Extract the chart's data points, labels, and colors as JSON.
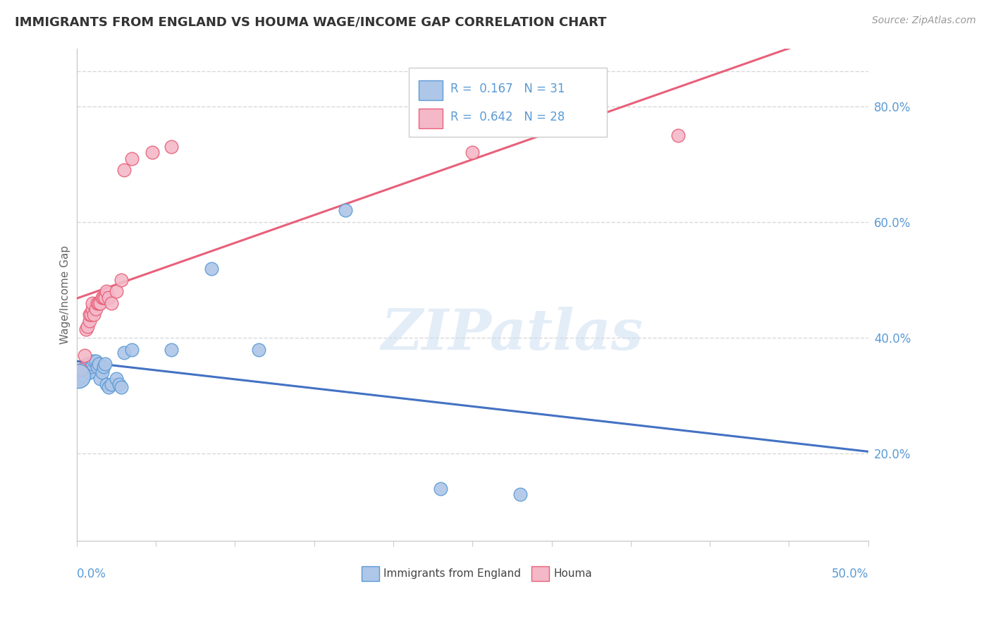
{
  "title": "IMMIGRANTS FROM ENGLAND VS HOUMA WAGE/INCOME GAP CORRELATION CHART",
  "source": "Source: ZipAtlas.com",
  "ylabel": "Wage/Income Gap",
  "ylabel_right_ticks": [
    "20.0%",
    "40.0%",
    "60.0%",
    "80.0%"
  ],
  "ylabel_right_vals": [
    0.2,
    0.4,
    0.6,
    0.8
  ],
  "watermark": "ZIPatlas",
  "legend_blue_R": "0.167",
  "legend_blue_N": "31",
  "legend_pink_R": "0.642",
  "legend_pink_N": "28",
  "blue_color": "#aec6e8",
  "blue_edge_color": "#5b9bd5",
  "pink_color": "#f4b8c8",
  "pink_edge_color": "#e8607a",
  "blue_line_color": "#4472c4",
  "pink_line_color": "#e8607a",
  "dashed_line_color": "#9ab8d8",
  "blue_scatter_x": [
    0.002,
    0.004,
    0.005,
    0.006,
    0.007,
    0.008,
    0.008,
    0.009,
    0.01,
    0.011,
    0.012,
    0.013,
    0.014,
    0.015,
    0.016,
    0.017,
    0.018,
    0.019,
    0.02,
    0.022,
    0.025,
    0.027,
    0.028,
    0.03,
    0.035,
    0.06,
    0.085,
    0.115,
    0.17,
    0.23,
    0.28
  ],
  "blue_scatter_y": [
    0.33,
    0.335,
    0.345,
    0.345,
    0.355,
    0.34,
    0.34,
    0.35,
    0.355,
    0.36,
    0.36,
    0.35,
    0.355,
    0.33,
    0.34,
    0.35,
    0.355,
    0.32,
    0.315,
    0.32,
    0.33,
    0.32,
    0.315,
    0.375,
    0.38,
    0.38,
    0.52,
    0.38,
    0.62,
    0.14,
    0.13
  ],
  "pink_scatter_x": [
    0.003,
    0.005,
    0.006,
    0.007,
    0.008,
    0.008,
    0.009,
    0.01,
    0.01,
    0.011,
    0.012,
    0.013,
    0.014,
    0.015,
    0.016,
    0.017,
    0.018,
    0.019,
    0.02,
    0.022,
    0.025,
    0.028,
    0.03,
    0.035,
    0.048,
    0.06,
    0.25,
    0.38
  ],
  "pink_scatter_y": [
    0.345,
    0.37,
    0.415,
    0.42,
    0.43,
    0.44,
    0.44,
    0.45,
    0.46,
    0.44,
    0.45,
    0.46,
    0.46,
    0.46,
    0.47,
    0.47,
    0.47,
    0.48,
    0.47,
    0.46,
    0.48,
    0.5,
    0.69,
    0.71,
    0.72,
    0.73,
    0.72,
    0.75
  ],
  "xmin": 0.0,
  "xmax": 0.5,
  "ymin": 0.05,
  "ymax": 0.9,
  "grid_color": "#d8d8d8",
  "spine_color": "#cccccc",
  "title_color": "#333333",
  "source_color": "#999999",
  "axis_label_color": "#5b9bd5",
  "ylabel_color": "#666666"
}
